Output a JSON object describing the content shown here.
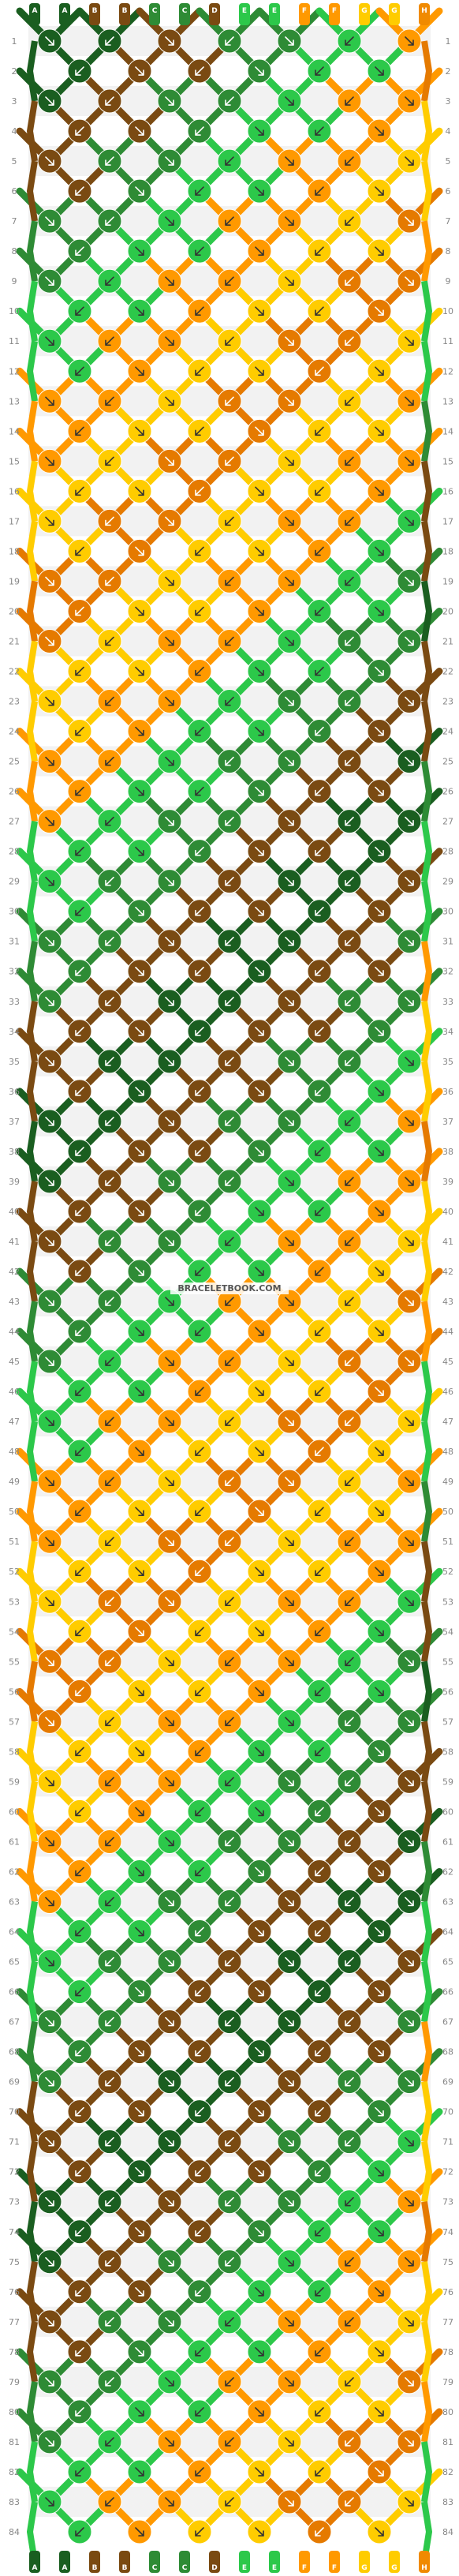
{
  "watermark": "BRACELETBOOK.COM",
  "rows": [
    "1",
    "2",
    "3",
    "4",
    "5",
    "6",
    "7",
    "8",
    "9",
    "10",
    "11",
    "12",
    "13",
    "14",
    "15",
    "16",
    "17",
    "18",
    "19",
    "20",
    "21",
    "22",
    "23",
    "24",
    "25",
    "26",
    "27",
    "28",
    "29",
    "30",
    "31",
    "32",
    "33",
    "34",
    "35",
    "36",
    "37",
    "38",
    "39",
    "40",
    "41",
    "42",
    "43",
    "44",
    "45",
    "46",
    "47",
    "48",
    "49",
    "50",
    "51",
    "52",
    "53",
    "54",
    "55",
    "56",
    "57",
    "58",
    "59",
    "60",
    "61",
    "62",
    "63",
    "64",
    "65",
    "66",
    "67",
    "68",
    "69",
    "70",
    "71",
    "72",
    "73",
    "74",
    "75",
    "76",
    "77",
    "78",
    "79",
    "80",
    "81",
    "82",
    "83",
    "84"
  ],
  "strings": [
    {
      "letter": "A",
      "color": "#1a5e20"
    },
    {
      "letter": "A",
      "color": "#1a5e20"
    },
    {
      "letter": "B",
      "color": "#7a4a12"
    },
    {
      "letter": "B",
      "color": "#7a4a12"
    },
    {
      "letter": "C",
      "color": "#2e8b35"
    },
    {
      "letter": "C",
      "color": "#2e8b35"
    },
    {
      "letter": "D",
      "color": "#7a4a12"
    },
    {
      "letter": "E",
      "color": "#2cc84a"
    },
    {
      "letter": "E",
      "color": "#2cc84a"
    },
    {
      "letter": "F",
      "color": "#ff9900"
    },
    {
      "letter": "F",
      "color": "#ff9900"
    },
    {
      "letter": "G",
      "color": "#ffcc00"
    },
    {
      "letter": "G",
      "color": "#ffcc00"
    },
    {
      "letter": "H",
      "color": "#f08a00"
    }
  ],
  "palette": {
    "dark_green": "#1a5e20",
    "brown": "#7a4a12",
    "green": "#2e8b35",
    "lime": "#2cc84a",
    "orange": "#ff9900",
    "yellow": "#ffcc00",
    "dark_orange": "#e57a00",
    "connector": "#cccccc",
    "row_band": "#f2f2f2"
  }
}
